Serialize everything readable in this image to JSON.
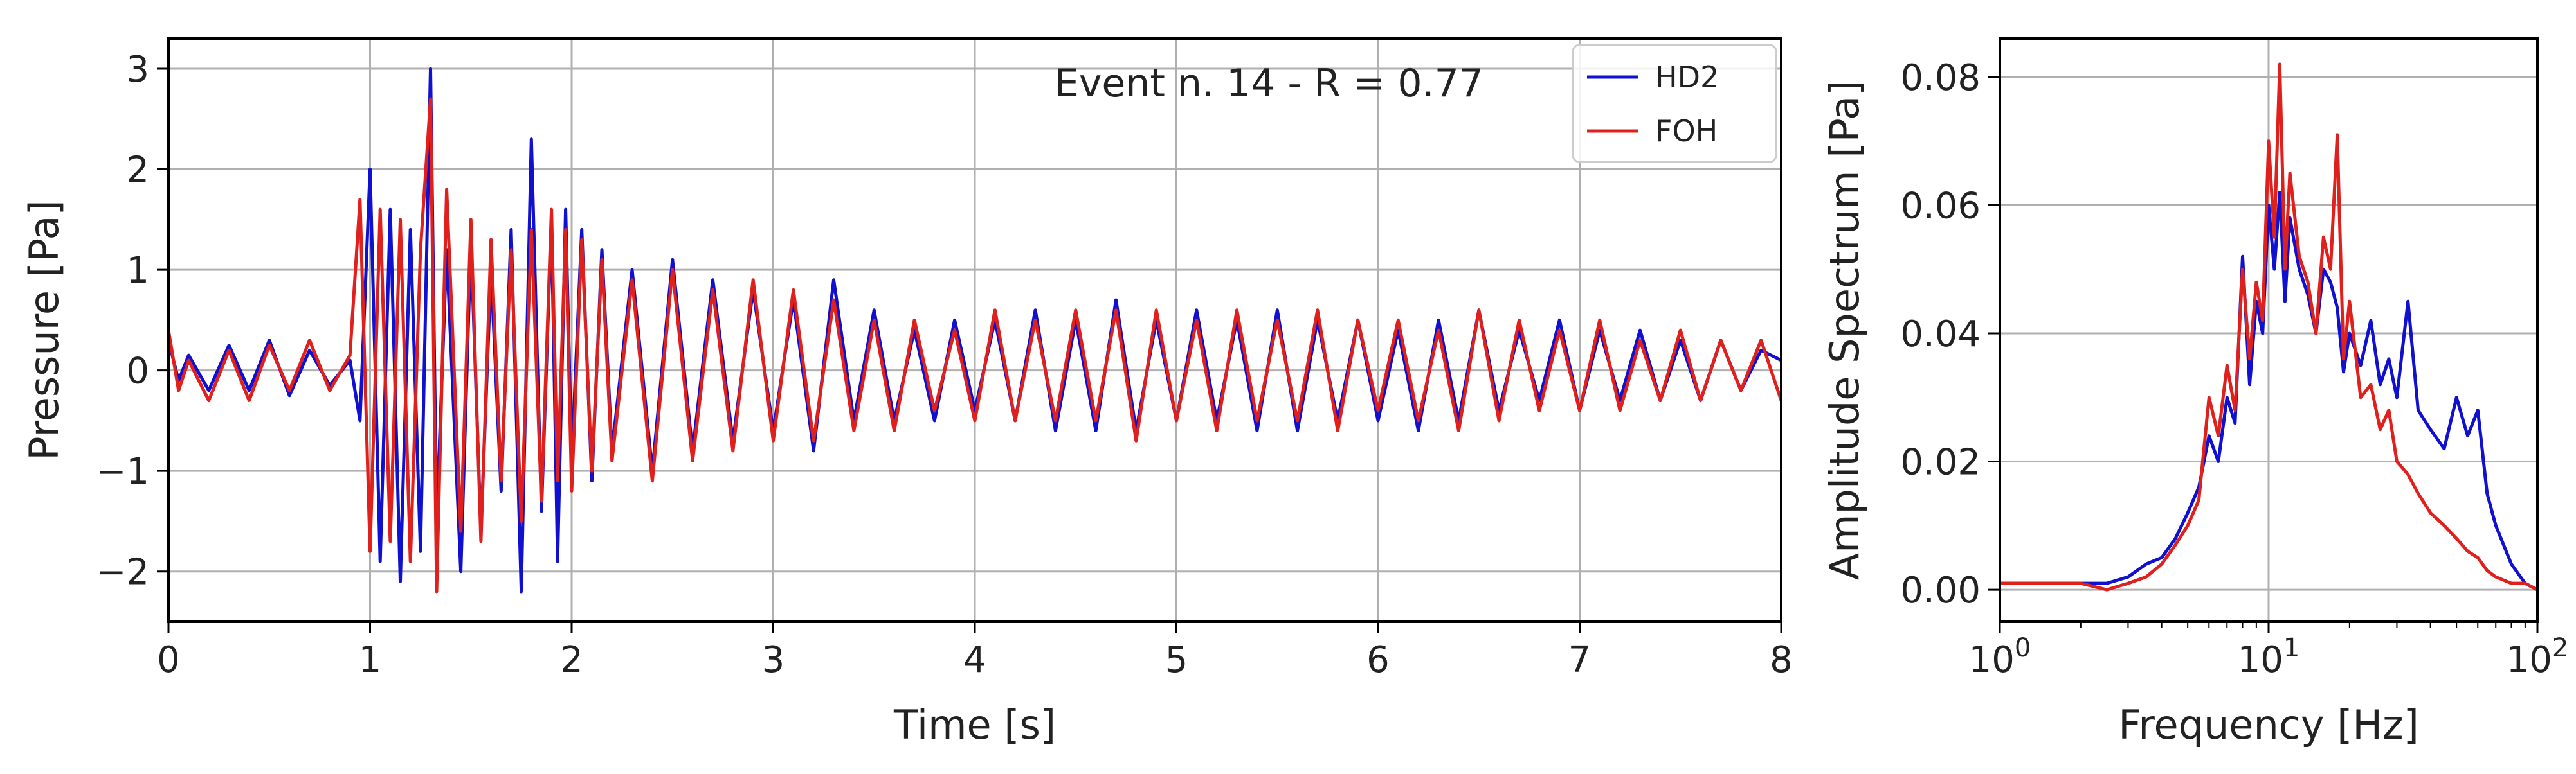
{
  "chart_data": [
    {
      "type": "line",
      "title": "",
      "annotation": "Event n. 14 - R = 0.77",
      "xlabel": "Time [s]",
      "ylabel": "Pressure [Pa]",
      "xlim": [
        0,
        8
      ],
      "ylim": [
        -2.5,
        3.3
      ],
      "xticks": [
        0,
        1,
        2,
        3,
        4,
        5,
        6,
        7,
        8
      ],
      "xtick_labels": [
        "0",
        "1",
        "2",
        "3",
        "4",
        "5",
        "6",
        "7",
        "8"
      ],
      "yticks": [
        -2,
        -1,
        0,
        1,
        2,
        3
      ],
      "ytick_labels": [
        "−2",
        "−1",
        "0",
        "1",
        "2",
        "3"
      ],
      "grid": true,
      "legend_position": "top-right",
      "series": [
        {
          "name": "HD2",
          "color": "#1010d0",
          "x": [
            0,
            0.05,
            0.1,
            0.2,
            0.3,
            0.4,
            0.5,
            0.6,
            0.7,
            0.8,
            0.9,
            0.95,
            1.0,
            1.05,
            1.1,
            1.15,
            1.2,
            1.25,
            1.3,
            1.33,
            1.38,
            1.45,
            1.5,
            1.55,
            1.6,
            1.65,
            1.7,
            1.75,
            1.8,
            1.85,
            1.9,
            1.93,
            1.97,
            2.0,
            2.05,
            2.1,
            2.15,
            2.2,
            2.3,
            2.4,
            2.5,
            2.6,
            2.7,
            2.8,
            2.9,
            3.0,
            3.1,
            3.2,
            3.3,
            3.4,
            3.5,
            3.6,
            3.7,
            3.8,
            3.9,
            4.0,
            4.1,
            4.2,
            4.3,
            4.4,
            4.5,
            4.6,
            4.7,
            4.8,
            4.9,
            5.0,
            5.1,
            5.2,
            5.3,
            5.4,
            5.5,
            5.6,
            5.7,
            5.8,
            5.9,
            6.0,
            6.1,
            6.2,
            6.3,
            6.4,
            6.5,
            6.6,
            6.7,
            6.8,
            6.9,
            7.0,
            7.1,
            7.2,
            7.3,
            7.4,
            7.5,
            7.6,
            7.7,
            7.8,
            7.9,
            8.0
          ],
          "y": [
            0.3,
            -0.1,
            0.15,
            -0.2,
            0.25,
            -0.2,
            0.3,
            -0.25,
            0.2,
            -0.15,
            0.1,
            -0.5,
            2.0,
            -1.9,
            1.6,
            -2.1,
            1.4,
            -1.8,
            3.0,
            -1.5,
            1.2,
            -2.0,
            1.3,
            -1.6,
            1.0,
            -1.2,
            1.4,
            -2.2,
            2.3,
            -1.4,
            1.5,
            -1.9,
            1.6,
            -0.9,
            1.4,
            -1.1,
            1.2,
            -0.8,
            1.0,
            -1.0,
            1.1,
            -0.8,
            0.9,
            -0.7,
            0.8,
            -0.6,
            0.7,
            -0.8,
            0.9,
            -0.5,
            0.6,
            -0.5,
            0.4,
            -0.5,
            0.5,
            -0.4,
            0.5,
            -0.5,
            0.6,
            -0.6,
            0.5,
            -0.6,
            0.7,
            -0.6,
            0.5,
            -0.5,
            0.6,
            -0.5,
            0.5,
            -0.6,
            0.6,
            -0.6,
            0.5,
            -0.5,
            0.5,
            -0.5,
            0.4,
            -0.6,
            0.5,
            -0.5,
            0.6,
            -0.4,
            0.4,
            -0.3,
            0.5,
            -0.4,
            0.4,
            -0.3,
            0.4,
            -0.3,
            0.3,
            -0.3,
            0.3,
            -0.2,
            0.2,
            0.1
          ]
        },
        {
          "name": "FOH",
          "color": "#e0201c",
          "x": [
            0,
            0.05,
            0.1,
            0.2,
            0.3,
            0.4,
            0.5,
            0.6,
            0.7,
            0.8,
            0.9,
            0.95,
            1.0,
            1.05,
            1.1,
            1.15,
            1.2,
            1.25,
            1.3,
            1.33,
            1.38,
            1.45,
            1.5,
            1.55,
            1.6,
            1.65,
            1.7,
            1.75,
            1.8,
            1.85,
            1.9,
            1.93,
            1.97,
            2.0,
            2.05,
            2.1,
            2.15,
            2.2,
            2.3,
            2.4,
            2.5,
            2.6,
            2.7,
            2.8,
            2.9,
            3.0,
            3.1,
            3.2,
            3.3,
            3.4,
            3.5,
            3.6,
            3.7,
            3.8,
            3.9,
            4.0,
            4.1,
            4.2,
            4.3,
            4.4,
            4.5,
            4.6,
            4.7,
            4.8,
            4.9,
            5.0,
            5.1,
            5.2,
            5.3,
            5.4,
            5.5,
            5.6,
            5.7,
            5.8,
            5.9,
            6.0,
            6.1,
            6.2,
            6.3,
            6.4,
            6.5,
            6.6,
            6.7,
            6.8,
            6.9,
            7.0,
            7.1,
            7.2,
            7.3,
            7.4,
            7.5,
            7.6,
            7.7,
            7.8,
            7.9,
            8.0
          ],
          "y": [
            0.4,
            -0.2,
            0.1,
            -0.3,
            0.2,
            -0.3,
            0.25,
            -0.2,
            0.3,
            -0.2,
            0.15,
            1.7,
            -1.8,
            1.6,
            -1.7,
            1.5,
            -1.9,
            1.2,
            2.7,
            -2.2,
            1.8,
            -1.6,
            1.5,
            -1.7,
            1.3,
            -1.1,
            1.2,
            -1.5,
            1.4,
            -1.3,
            1.6,
            -1.1,
            1.4,
            -1.2,
            1.3,
            -1.0,
            1.1,
            -0.9,
            0.9,
            -1.1,
            1.0,
            -0.9,
            0.8,
            -0.8,
            0.9,
            -0.7,
            0.8,
            -0.7,
            0.7,
            -0.6,
            0.5,
            -0.6,
            0.5,
            -0.4,
            0.4,
            -0.5,
            0.6,
            -0.5,
            0.5,
            -0.5,
            0.6,
            -0.5,
            0.6,
            -0.7,
            0.6,
            -0.5,
            0.5,
            -0.6,
            0.6,
            -0.5,
            0.5,
            -0.5,
            0.6,
            -0.6,
            0.5,
            -0.4,
            0.5,
            -0.5,
            0.4,
            -0.6,
            0.6,
            -0.5,
            0.5,
            -0.4,
            0.4,
            -0.4,
            0.5,
            -0.4,
            0.3,
            -0.3,
            0.4,
            -0.3,
            0.3,
            -0.2,
            0.3,
            -0.3
          ]
        }
      ]
    },
    {
      "type": "line",
      "title": "",
      "xlabel": "Frequency [Hz]",
      "ylabel": "Amplitude Spectrum [Pa]",
      "xscale": "log",
      "xlim": [
        1,
        100
      ],
      "ylim": [
        -0.005,
        0.086
      ],
      "xticks": [
        1,
        10,
        100
      ],
      "xtick_labels": [
        {
          "base": "10",
          "exp": "0"
        },
        {
          "base": "10",
          "exp": "1"
        },
        {
          "base": "10",
          "exp": "2"
        }
      ],
      "yticks": [
        0.0,
        0.02,
        0.04,
        0.06,
        0.08
      ],
      "ytick_labels": [
        "0.00",
        "0.02",
        "0.04",
        "0.06",
        "0.08"
      ],
      "grid": true,
      "series": [
        {
          "name": "HD2",
          "color": "#1010d0",
          "x": [
            1,
            1.5,
            2,
            2.5,
            3,
            3.5,
            4,
            4.5,
            5,
            5.5,
            6,
            6.5,
            7,
            7.5,
            8,
            8.5,
            9,
            9.5,
            10,
            10.5,
            11,
            11.5,
            12,
            13,
            14,
            15,
            16,
            17,
            18,
            19,
            20,
            22,
            24,
            26,
            28,
            30,
            33,
            36,
            40,
            45,
            50,
            55,
            60,
            65,
            70,
            80,
            90,
            100
          ],
          "y": [
            0.001,
            0.001,
            0.001,
            0.001,
            0.002,
            0.004,
            0.005,
            0.008,
            0.012,
            0.016,
            0.024,
            0.02,
            0.03,
            0.026,
            0.052,
            0.032,
            0.045,
            0.04,
            0.06,
            0.05,
            0.062,
            0.045,
            0.058,
            0.05,
            0.046,
            0.04,
            0.05,
            0.048,
            0.044,
            0.034,
            0.04,
            0.035,
            0.042,
            0.032,
            0.036,
            0.03,
            0.045,
            0.028,
            0.025,
            0.022,
            0.03,
            0.024,
            0.028,
            0.015,
            0.01,
            0.004,
            0.001,
            0.0
          ]
        },
        {
          "name": "FOH",
          "color": "#e0201c",
          "x": [
            1,
            1.5,
            2,
            2.5,
            3,
            3.5,
            4,
            4.5,
            5,
            5.5,
            6,
            6.5,
            7,
            7.5,
            8,
            8.5,
            9,
            9.5,
            10,
            10.5,
            11,
            11.5,
            12,
            13,
            14,
            15,
            16,
            17,
            18,
            19,
            20,
            22,
            24,
            26,
            28,
            30,
            33,
            36,
            40,
            45,
            50,
            55,
            60,
            65,
            70,
            80,
            90,
            100
          ],
          "y": [
            0.001,
            0.001,
            0.001,
            0.0,
            0.001,
            0.002,
            0.004,
            0.007,
            0.01,
            0.014,
            0.03,
            0.024,
            0.035,
            0.028,
            0.05,
            0.036,
            0.048,
            0.042,
            0.07,
            0.055,
            0.082,
            0.05,
            0.065,
            0.052,
            0.048,
            0.04,
            0.055,
            0.05,
            0.071,
            0.036,
            0.045,
            0.03,
            0.032,
            0.025,
            0.028,
            0.02,
            0.018,
            0.015,
            0.012,
            0.01,
            0.008,
            0.006,
            0.005,
            0.003,
            0.002,
            0.001,
            0.001,
            0.0
          ]
        }
      ]
    }
  ]
}
